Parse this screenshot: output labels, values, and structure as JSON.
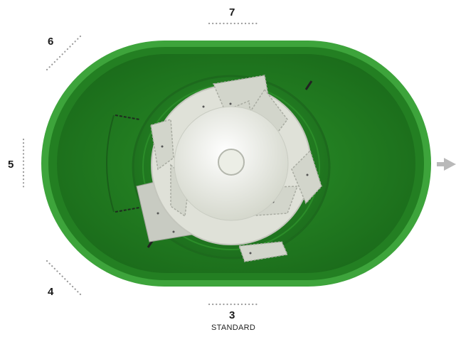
{
  "diagram": {
    "positions": [
      {
        "number": "7"
      },
      {
        "number": "6"
      },
      {
        "number": "5"
      },
      {
        "number": "4"
      },
      {
        "number": "3",
        "caption": "STANDARD"
      }
    ],
    "colors": {
      "tank_rim": "#3da43b",
      "tank_inner": "#237f22",
      "impeller": "#e6e8e0",
      "label_dots": "#9a9a9a",
      "flow_arrow": "#b9b9b9"
    },
    "icons": {
      "flow": "right-arrow-icon"
    }
  }
}
